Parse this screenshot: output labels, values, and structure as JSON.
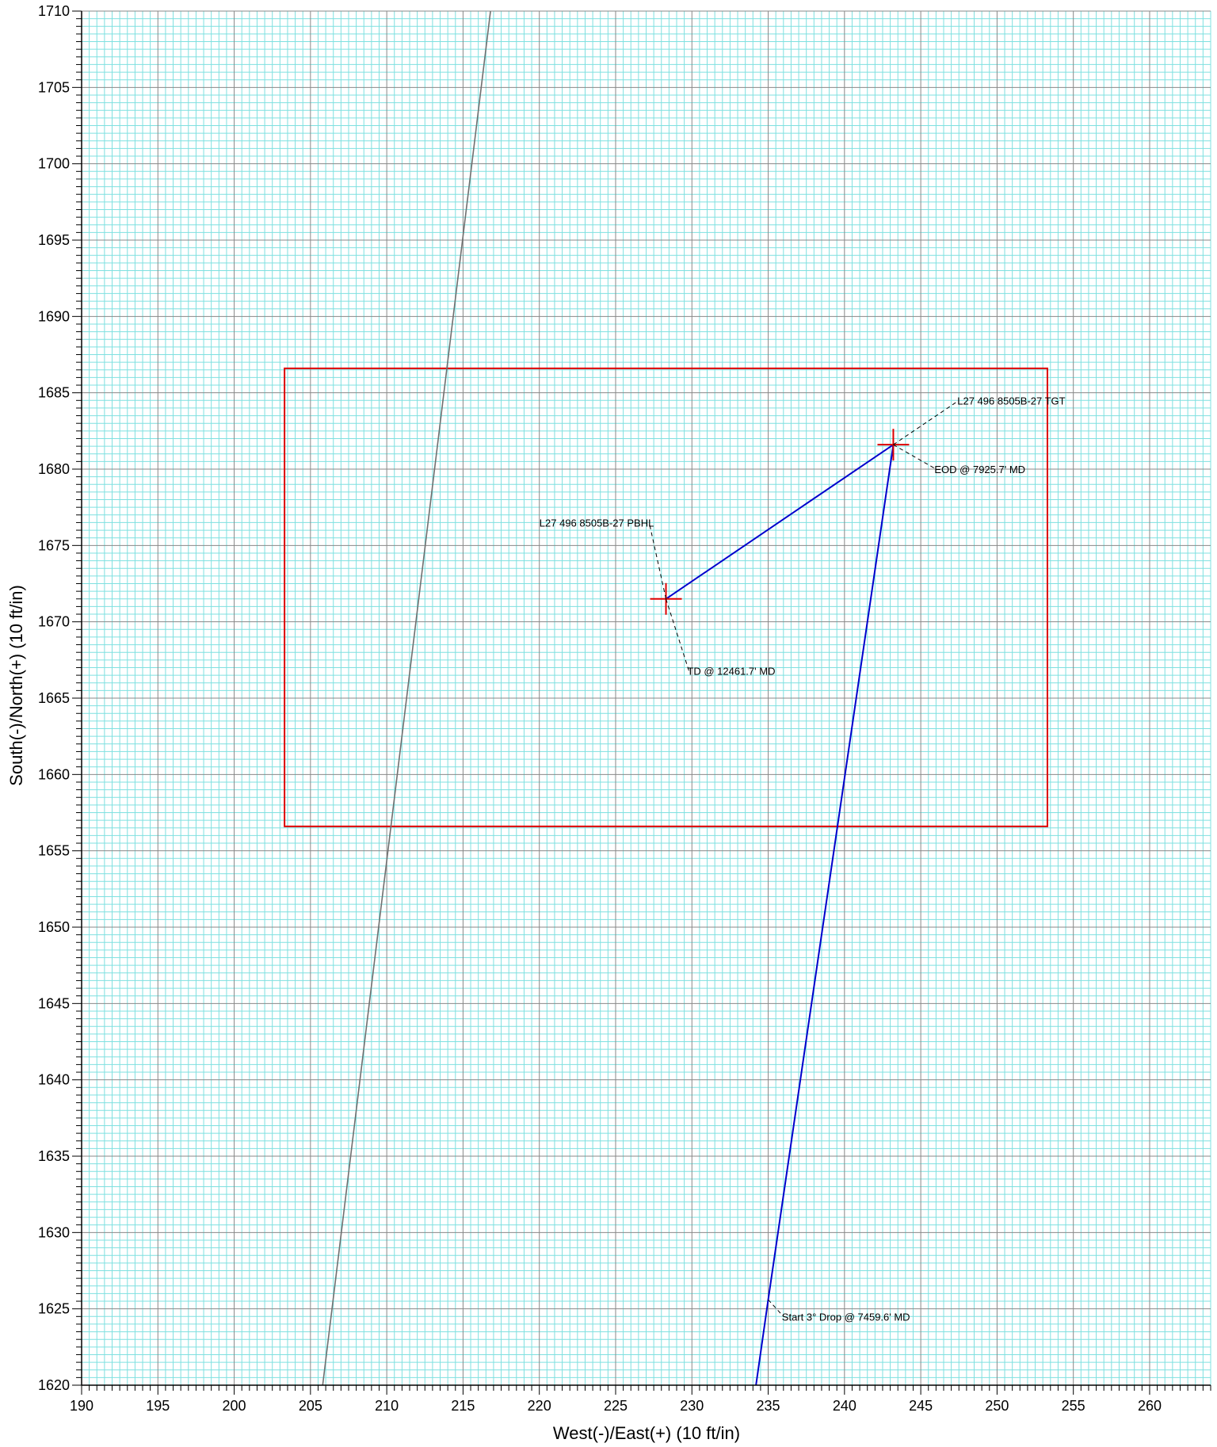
{
  "chart_data": {
    "type": "line",
    "xlabel": "West(-)/East(+) (10 ft/in)",
    "ylabel": "South(-)/North(+) (10 ft/in)",
    "xlim": [
      190,
      264
    ],
    "ylim": [
      1620,
      1710
    ],
    "x_ticks": [
      190,
      195,
      200,
      205,
      210,
      215,
      220,
      225,
      230,
      235,
      240,
      245,
      250,
      255,
      260
    ],
    "y_ticks": [
      1620,
      1625,
      1630,
      1635,
      1640,
      1645,
      1650,
      1655,
      1660,
      1665,
      1670,
      1675,
      1680,
      1685,
      1690,
      1695,
      1700,
      1705,
      1710
    ],
    "grid": true,
    "colors": {
      "background": "#ffffff",
      "minor_grid": "#7fe0e0",
      "major_grid": "#888888",
      "wellpath": "#0000cc",
      "offset_well": "#707070",
      "target": "#dd0000",
      "leader": "#000000"
    },
    "series": [
      {
        "points": [
          [
            234.2,
            1620
          ],
          [
            235.0,
            1625.6
          ],
          [
            243.2,
            1681.6
          ],
          [
            228.3,
            1671.5
          ]
        ]
      },
      {
        "points": [
          [
            205.8,
            1620
          ],
          [
            216.8,
            1710
          ]
        ]
      }
    ],
    "target_box": {
      "x": [
        203.3,
        253.3
      ],
      "y": [
        1656.6,
        1686.6
      ]
    },
    "markers": [
      {
        "x": 243.2,
        "y": 1681.6
      },
      {
        "x": 228.3,
        "y": 1671.5
      }
    ],
    "annotations": [
      {
        "text": "L27 496 8505B-27 TGT",
        "x": 243.2,
        "y": 1681.6,
        "lx": 247.5,
        "ly": 1684.5,
        "anchor": "start"
      },
      {
        "text": "EOD @ 7925.7' MD",
        "x": 243.2,
        "y": 1681.6,
        "lx": 246.0,
        "ly": 1680.0,
        "anchor": "start"
      },
      {
        "text": "L27 496 8505B-27 PBHL",
        "x": 228.3,
        "y": 1671.5,
        "lx": 227.2,
        "ly": 1676.5,
        "anchor": "end"
      },
      {
        "text": "TD @ 12461.7' MD",
        "x": 228.3,
        "y": 1671.5,
        "lx": 229.8,
        "ly": 1666.8,
        "anchor": "start"
      },
      {
        "text": "Start 3° Drop @ 7459.6' MD",
        "x": 235.0,
        "y": 1625.6,
        "lx": 236.0,
        "ly": 1624.5,
        "anchor": "start"
      }
    ]
  }
}
